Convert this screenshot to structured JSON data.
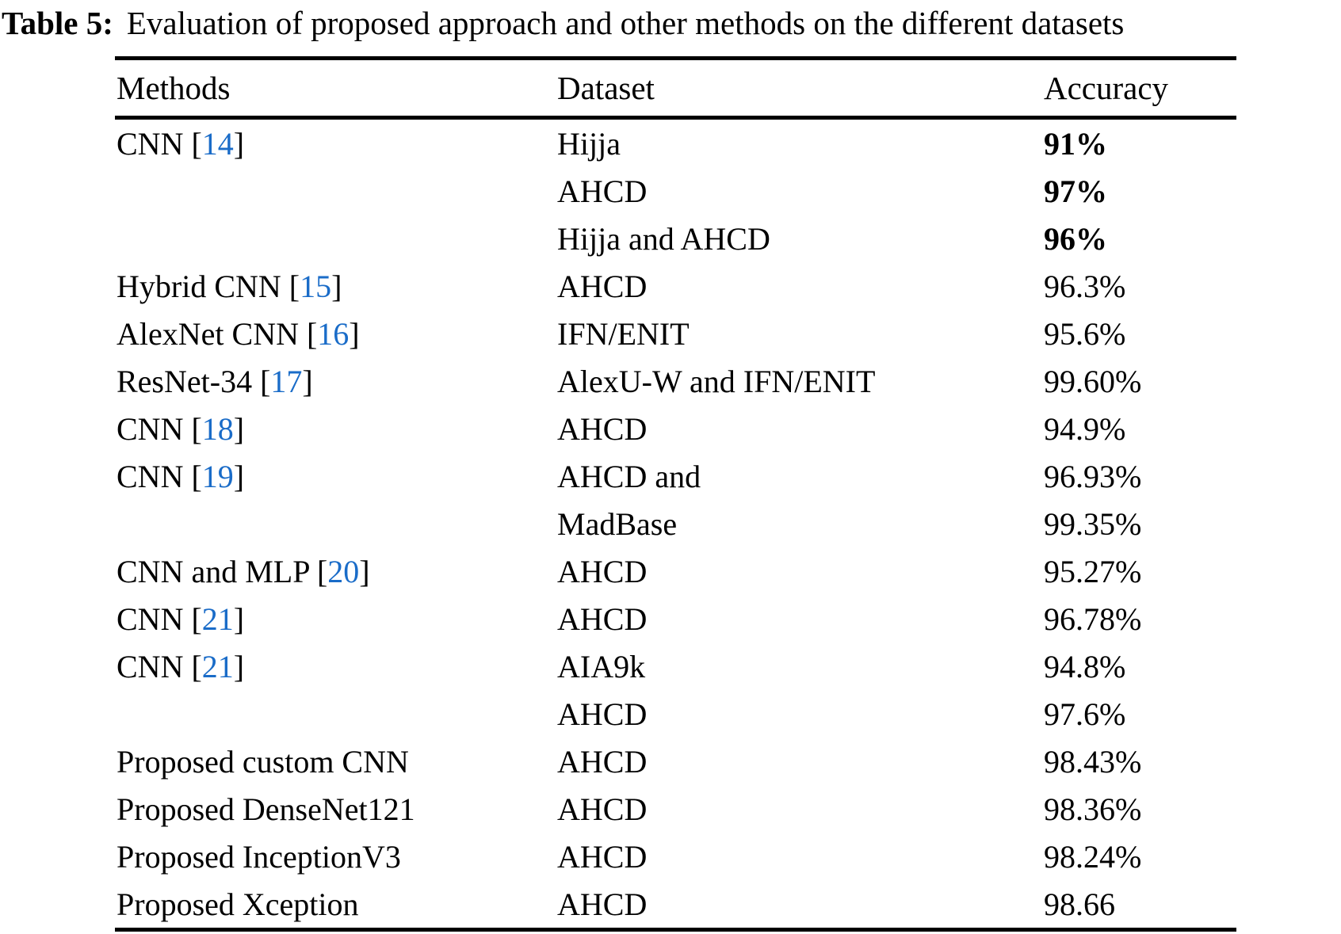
{
  "caption": {
    "label": "Table 5:",
    "text": "Evaluation of proposed approach and other methods on the different datasets"
  },
  "colors": {
    "citation_link": "#1a6cc8",
    "ink": "#000000"
  },
  "table": {
    "columns": [
      "Methods",
      "Dataset",
      "Accuracy"
    ],
    "rows": [
      {
        "method": "CNN",
        "ref": "14",
        "dataset": "Hijja",
        "accuracy": "91%",
        "bold": true
      },
      {
        "method": "",
        "ref": null,
        "dataset": "AHCD",
        "accuracy": "97%",
        "bold": true
      },
      {
        "method": "",
        "ref": null,
        "dataset": "Hijja and AHCD",
        "accuracy": "96%",
        "bold": true
      },
      {
        "method": "Hybrid CNN",
        "ref": "15",
        "dataset": "AHCD",
        "accuracy": "96.3%",
        "bold": false
      },
      {
        "method": "AlexNet CNN",
        "ref": "16",
        "dataset": "IFN/ENIT",
        "accuracy": "95.6%",
        "bold": false
      },
      {
        "method": "ResNet-34",
        "ref": "17",
        "dataset": "AlexU-W and IFN/ENIT",
        "accuracy": "99.60%",
        "bold": false
      },
      {
        "method": "CNN",
        "ref": "18",
        "dataset": "AHCD",
        "accuracy": "94.9%",
        "bold": false
      },
      {
        "method": "CNN",
        "ref": "19",
        "dataset": "AHCD and",
        "accuracy": "96.93%",
        "bold": false
      },
      {
        "method": "",
        "ref": null,
        "dataset": "MadBase",
        "accuracy": "99.35%",
        "bold": false
      },
      {
        "method": "CNN and MLP",
        "ref": "20",
        "dataset": "AHCD",
        "accuracy": "95.27%",
        "bold": false
      },
      {
        "method": "CNN",
        "ref": "21",
        "dataset": "AHCD",
        "accuracy": "96.78%",
        "bold": false
      },
      {
        "method": "CNN",
        "ref": "21",
        "dataset": "AIA9k",
        "accuracy": "94.8%",
        "bold": false
      },
      {
        "method": "",
        "ref": null,
        "dataset": "AHCD",
        "accuracy": "97.6%",
        "bold": false
      },
      {
        "method": "Proposed custom CNN",
        "ref": null,
        "dataset": "AHCD",
        "accuracy": "98.43%",
        "bold": false
      },
      {
        "method": "Proposed DenseNet121",
        "ref": null,
        "dataset": "AHCD",
        "accuracy": "98.36%",
        "bold": false
      },
      {
        "method": "Proposed InceptionV3",
        "ref": null,
        "dataset": "AHCD",
        "accuracy": "98.24%",
        "bold": false
      },
      {
        "method": "Proposed Xception",
        "ref": null,
        "dataset": "AHCD",
        "accuracy": "98.66",
        "bold": false
      }
    ],
    "citation_open_bracket": " [",
    "citation_close_bracket": "]"
  }
}
